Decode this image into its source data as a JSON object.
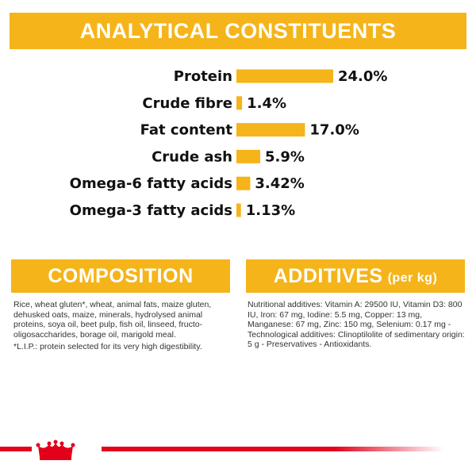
{
  "header": {
    "title": "ANALYTICAL CONSTITUENTS"
  },
  "chart_data": {
    "type": "bar",
    "orientation": "horizontal",
    "categories": [
      "Protein",
      "Crude fibre",
      "Fat content",
      "Crude ash",
      "Omega-6 fatty acids",
      "Omega-3 fatty acids"
    ],
    "values": [
      24.0,
      1.4,
      17.0,
      5.9,
      3.42,
      1.13
    ],
    "value_labels": [
      "24.0%",
      "1.4%",
      "17.0%",
      "5.9%",
      "3.42%",
      "1.13%"
    ],
    "unit": "%",
    "bar_color": "#f5b41a",
    "xlim": [
      0,
      24.0
    ],
    "grid": false,
    "legend": "none"
  },
  "composition": {
    "title": "COMPOSITION",
    "text": "Rice, wheat gluten*, wheat, animal fats, maize gluten, dehusked oats, maize, minerals, hydrolysed animal proteins, soya oil, beet pulp, fish oil, linseed, fructo-oligosaccharides, borage oil, marigold meal.",
    "note": "*L.I.P.: protein selected for its very high digestibility."
  },
  "additives": {
    "title": "ADDITIVES",
    "unit": "(per kg)",
    "text": "Nutritional additives: Vitamin A: 29500 IU, Vitamin D3: 800 IU, Iron: 67 mg, Iodine: 5.5 mg, Copper: 13 mg, Manganese: 67 mg, Zinc: 150 mg, Selenium: 0.17 mg - Technological additives: Clinoptilolite of sedimentary origin: 5 g - Preservatives - Antioxidants."
  },
  "colors": {
    "accent": "#f5b41a",
    "brand_red": "#e2001a"
  },
  "icons": {
    "brand": "crown-logo-icon"
  }
}
